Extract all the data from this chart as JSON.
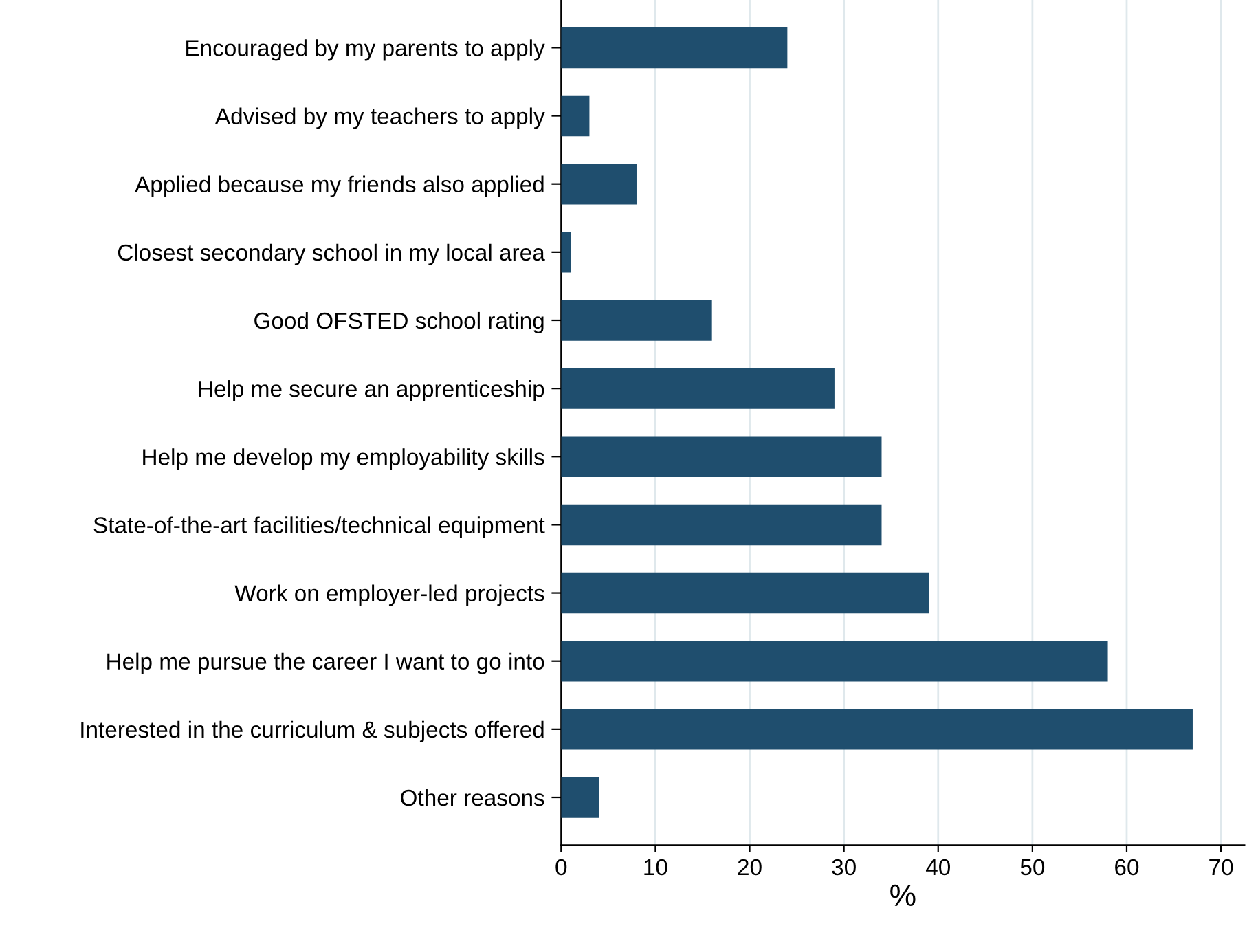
{
  "chart_data": {
    "type": "bar",
    "orientation": "horizontal",
    "xlabel": "%",
    "categories": [
      "Encouraged by my parents to apply",
      "Advised by my teachers to apply",
      "Applied because my friends also applied",
      "Closest secondary school in my local area",
      "Good OFSTED school rating",
      "Help me secure an apprenticeship",
      "Help me develop my employability skills",
      "State-of-the-art facilities/technical equipment",
      "Work on employer-led projects",
      "Help me pursue the career I want to go into",
      "Interested in the curriculum & subjects offered",
      "Other reasons"
    ],
    "values": [
      24,
      3,
      8,
      1,
      16,
      29,
      34,
      34,
      39,
      58,
      67,
      4
    ],
    "color": "#1f4e6e",
    "xlim": [
      0,
      72.5
    ],
    "xticks": [
      0,
      10,
      20,
      30,
      40,
      50,
      60,
      70
    ],
    "grid": "x"
  }
}
